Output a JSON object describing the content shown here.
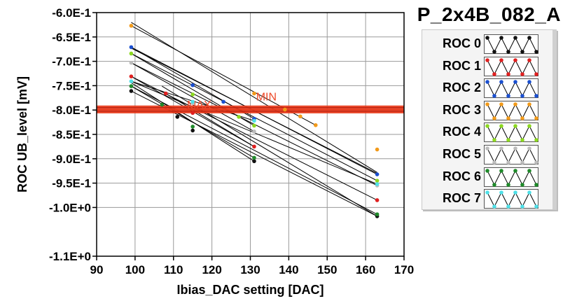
{
  "chart_data": {
    "type": "line",
    "title": "P_2x4B_082_A",
    "xlabel": "Ibias_DAC setting [DAC]",
    "ylabel": "ROC UB_level [mV]",
    "xlim": [
      90,
      170
    ],
    "ylim": [
      -1.1,
      -0.6
    ],
    "x_ticks": [
      90,
      100,
      110,
      120,
      130,
      140,
      150,
      160,
      170
    ],
    "x_tick_labels": [
      "90",
      "100",
      "110",
      "120",
      "130",
      "140",
      "150",
      "160",
      "170"
    ],
    "y_ticks": [
      -0.6,
      -0.65,
      -0.7,
      -0.75,
      -0.8,
      -0.85,
      -0.9,
      -0.95,
      -1.0,
      -1.1
    ],
    "y_tick_labels": [
      "-6.0E-1",
      "-6.5E-1",
      "-7.0E-1",
      "-7.5E-1",
      "-8.0E-1",
      "-8.5E-1",
      "-9.0E-1",
      "-9.5E-1",
      "-1.0E+0",
      "-1.1E+0"
    ],
    "grid": true,
    "limits": [
      {
        "name": "MAX",
        "y": -0.8025,
        "color": "#e83a1a"
      },
      {
        "name": "MIN",
        "y": -0.795,
        "color": "#e83a1a"
      }
    ],
    "series": [
      {
        "name": "ROC 0",
        "color": "#111111",
        "points": [
          [
            99,
            -0.761
          ],
          [
            111,
            -0.814
          ],
          [
            115,
            -0.842
          ],
          [
            131,
            -0.905
          ],
          [
            163,
            -1.018
          ]
        ],
        "segments": [
          [
            99,
            -0.761,
            163,
            -1.018
          ],
          [
            107,
            -0.751,
            163,
            -1.018
          ],
          [
            99,
            -0.673,
            163,
            -0.93
          ],
          [
            99,
            -0.744,
            131,
            -0.905
          ],
          [
            99,
            -0.62,
            163,
            -0.928
          ]
        ]
      },
      {
        "name": "ROC 1",
        "color": "#e02020",
        "points": [
          [
            99,
            -0.731
          ],
          [
            108,
            -0.766
          ],
          [
            115,
            -0.806
          ],
          [
            131,
            -0.875
          ],
          [
            163,
            -0.985
          ]
        ],
        "segments": [
          [
            99,
            -0.731,
            163,
            -0.985
          ],
          [
            108,
            -0.766,
            131,
            -0.875
          ],
          [
            99,
            -0.731,
            131,
            -0.875
          ]
        ]
      },
      {
        "name": "ROC 2",
        "color": "#1a4fd0",
        "points": [
          [
            99,
            -0.671
          ],
          [
            115,
            -0.749
          ],
          [
            123,
            -0.783
          ],
          [
            131,
            -0.818
          ],
          [
            163,
            -0.932
          ]
        ],
        "segments": [
          [
            99,
            -0.671,
            163,
            -0.932
          ],
          [
            99,
            -0.671,
            131,
            -0.818
          ]
        ]
      },
      {
        "name": "ROC 3",
        "color": "#f29a1a",
        "points": [
          [
            99,
            -0.627
          ],
          [
            131,
            -0.766
          ],
          [
            139,
            -0.799
          ],
          [
            143,
            -0.813
          ],
          [
            147,
            -0.831
          ],
          [
            163,
            -0.881
          ]
        ],
        "segments": [
          [
            99,
            -0.627,
            147,
            -0.831
          ]
        ]
      },
      {
        "name": "ROC 4",
        "color": "#8cd820",
        "points": [
          [
            99,
            -0.684
          ],
          [
            115,
            -0.768
          ],
          [
            127,
            -0.814
          ],
          [
            131,
            -0.832
          ],
          [
            163,
            -0.945
          ]
        ],
        "segments": [
          [
            99,
            -0.684,
            163,
            -0.945
          ],
          [
            99,
            -0.684,
            131,
            -0.832
          ]
        ]
      },
      {
        "name": "ROC 5",
        "color": "#bdbdbd",
        "points": [
          [
            99,
            -0.703
          ],
          [
            115,
            -0.786
          ],
          [
            131,
            -0.844
          ],
          [
            163,
            -0.955
          ]
        ],
        "segments": [
          [
            99,
            -0.703,
            163,
            -0.955
          ],
          [
            99,
            -0.703,
            131,
            -0.844
          ]
        ]
      },
      {
        "name": "ROC 6",
        "color": "#1f8a2a",
        "points": [
          [
            99,
            -0.751
          ],
          [
            107,
            -0.789
          ],
          [
            115,
            -0.834
          ],
          [
            131,
            -0.898
          ],
          [
            163,
            -1.014
          ]
        ],
        "segments": [
          [
            99,
            -0.751,
            163,
            -1.014
          ],
          [
            99,
            -0.751,
            131,
            -0.898
          ]
        ]
      },
      {
        "name": "ROC 7",
        "color": "#4fe0e8",
        "points": [
          [
            99,
            -0.741
          ],
          [
            115,
            -0.783
          ],
          [
            131,
            -0.822
          ],
          [
            163,
            -0.952
          ]
        ],
        "segments": [
          [
            99,
            -0.741,
            163,
            -0.952
          ],
          [
            99,
            -0.741,
            131,
            -0.822
          ]
        ]
      }
    ]
  }
}
